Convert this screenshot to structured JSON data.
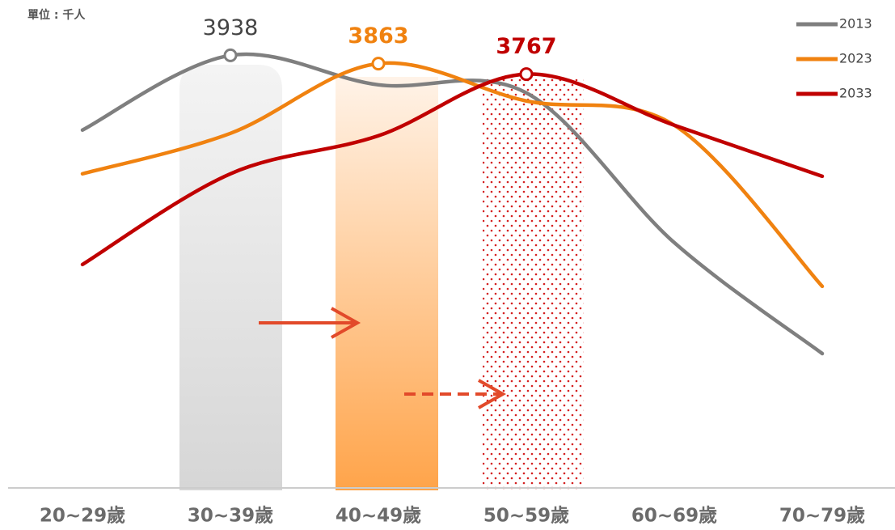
{
  "chart_data": {
    "type": "line",
    "subtitle": "單位 : 千人",
    "categories": [
      "20~29歲",
      "30~39歲",
      "40~49歲",
      "50~59歲",
      "60~69歲",
      "70~79歲"
    ],
    "series": [
      {
        "name": "2013",
        "color": "#7f7f7f",
        "values": [
          3258,
          3938,
          3670,
          3597,
          2233,
          1223
        ]
      },
      {
        "name": "2023",
        "color": "#f08210",
        "values": [
          2860,
          3228,
          3863,
          3523,
          3302,
          1835
        ]
      },
      {
        "name": "2033",
        "color": "#c00000",
        "values": [
          2034,
          2860,
          3206,
          3767,
          3302,
          2837
        ]
      }
    ],
    "ylim": [
      0,
      4000
    ],
    "legend": "top-right"
  }
}
